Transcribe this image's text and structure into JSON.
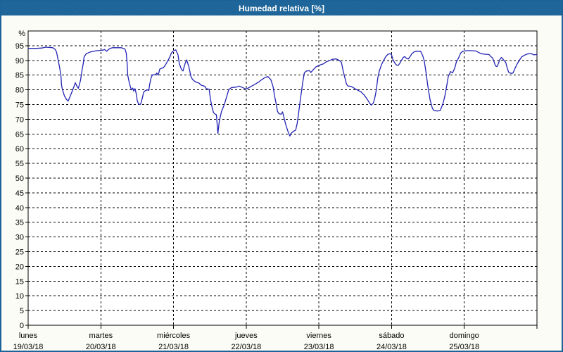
{
  "window": {
    "title": "Humedad relativa [%]"
  },
  "colors": {
    "titlebar_bg": "#1b6398",
    "frame_border": "#1b6398",
    "frame_bg": "#fbfcf5",
    "plot_bg": "#ffffff",
    "grid": "#000000",
    "series_line": "#2323b4"
  },
  "chart_data": {
    "type": "line",
    "title": "Humedad relativa [%]",
    "xlabel": "",
    "ylabel": "%",
    "ylim": [
      0,
      100
    ],
    "y_ticks": [
      0,
      5,
      10,
      15,
      20,
      25,
      30,
      35,
      40,
      45,
      50,
      55,
      60,
      65,
      70,
      75,
      80,
      85,
      90,
      95
    ],
    "grid": "dashed",
    "legend": "none",
    "x_days": [
      {
        "name": "lunes",
        "date": "19/03/18"
      },
      {
        "name": "martes",
        "date": "20/03/18"
      },
      {
        "name": "miércoles",
        "date": "21/03/18"
      },
      {
        "name": "jueves",
        "date": "22/03/18"
      },
      {
        "name": "viernes",
        "date": "23/03/18"
      },
      {
        "name": "sábado",
        "date": "24/03/18"
      },
      {
        "name": "domingo",
        "date": "25/03/18"
      }
    ],
    "x_unit": "days_from_monday_00h",
    "series": [
      {
        "name": "Humedad relativa",
        "color": "#2323b4",
        "points": [
          [
            0.0,
            94.1
          ],
          [
            0.12,
            94.1
          ],
          [
            0.19,
            94.2
          ],
          [
            0.24,
            94.5
          ],
          [
            0.29,
            94.4
          ],
          [
            0.34,
            94.3
          ],
          [
            0.37,
            93.8
          ],
          [
            0.39,
            92.9
          ],
          [
            0.41,
            90.5
          ],
          [
            0.43,
            88.0
          ],
          [
            0.45,
            85.0
          ],
          [
            0.46,
            81.5
          ],
          [
            0.47,
            80.3
          ],
          [
            0.5,
            77.9
          ],
          [
            0.53,
            76.7
          ],
          [
            0.55,
            76.2
          ],
          [
            0.58,
            77.9
          ],
          [
            0.62,
            80.4
          ],
          [
            0.65,
            82.4
          ],
          [
            0.67,
            81.3
          ],
          [
            0.69,
            80.5
          ],
          [
            0.72,
            83.2
          ],
          [
            0.74,
            86.4
          ],
          [
            0.76,
            89.2
          ],
          [
            0.77,
            91.2
          ],
          [
            0.8,
            92.3
          ],
          [
            0.86,
            92.9
          ],
          [
            0.94,
            93.3
          ],
          [
            1.0,
            93.4
          ],
          [
            1.03,
            93.5
          ],
          [
            1.05,
            93.7
          ],
          [
            1.08,
            93.1
          ],
          [
            1.12,
            94.0
          ],
          [
            1.16,
            94.3
          ],
          [
            1.28,
            94.3
          ],
          [
            1.33,
            93.9
          ],
          [
            1.35,
            92.5
          ],
          [
            1.36,
            89.5
          ],
          [
            1.37,
            85.0
          ],
          [
            1.39,
            82.5
          ],
          [
            1.41,
            80.8
          ],
          [
            1.42,
            80.0
          ],
          [
            1.44,
            80.6
          ],
          [
            1.45,
            79.6
          ],
          [
            1.47,
            80.4
          ],
          [
            1.49,
            78.4
          ],
          [
            1.5,
            76.4
          ],
          [
            1.52,
            75.1
          ],
          [
            1.54,
            75.0
          ],
          [
            1.55,
            75.3
          ],
          [
            1.57,
            77.2
          ],
          [
            1.59,
            79.2
          ],
          [
            1.61,
            79.7
          ],
          [
            1.64,
            80.0
          ],
          [
            1.66,
            79.8
          ],
          [
            1.67,
            81.6
          ],
          [
            1.69,
            84.0
          ],
          [
            1.71,
            85.1
          ],
          [
            1.75,
            85.1
          ],
          [
            1.77,
            85.7
          ],
          [
            1.79,
            85.0
          ],
          [
            1.81,
            87.0
          ],
          [
            1.84,
            87.4
          ],
          [
            1.86,
            87.5
          ],
          [
            1.89,
            88.5
          ],
          [
            1.92,
            89.8
          ],
          [
            1.95,
            91.2
          ],
          [
            1.97,
            92.5
          ],
          [
            2.0,
            93.3
          ],
          [
            2.03,
            93.6
          ],
          [
            2.06,
            92.0
          ],
          [
            2.08,
            88.9
          ],
          [
            2.11,
            86.9
          ],
          [
            2.13,
            86.4
          ],
          [
            2.16,
            89.0
          ],
          [
            2.18,
            90.2
          ],
          [
            2.21,
            87.9
          ],
          [
            2.24,
            84.5
          ],
          [
            2.26,
            83.6
          ],
          [
            2.3,
            82.7
          ],
          [
            2.35,
            82.3
          ],
          [
            2.38,
            81.6
          ],
          [
            2.43,
            81.2
          ],
          [
            2.45,
            80.4
          ],
          [
            2.49,
            80.2
          ],
          [
            2.51,
            76.6
          ],
          [
            2.53,
            74.1
          ],
          [
            2.55,
            72.3
          ],
          [
            2.57,
            71.8
          ],
          [
            2.59,
            71.5
          ],
          [
            2.61,
            65.2
          ],
          [
            2.63,
            69.3
          ],
          [
            2.66,
            72.6
          ],
          [
            2.7,
            75.1
          ],
          [
            2.73,
            77.6
          ],
          [
            2.76,
            80.1
          ],
          [
            2.8,
            80.8
          ],
          [
            2.86,
            80.9
          ],
          [
            2.9,
            81.3
          ],
          [
            2.95,
            80.8
          ],
          [
            2.99,
            80.3
          ],
          [
            3.02,
            80.5
          ],
          [
            3.07,
            81.2
          ],
          [
            3.12,
            81.9
          ],
          [
            3.17,
            82.6
          ],
          [
            3.21,
            83.4
          ],
          [
            3.26,
            84.2
          ],
          [
            3.3,
            84.5
          ],
          [
            3.34,
            83.4
          ],
          [
            3.37,
            81.0
          ],
          [
            3.39,
            78.0
          ],
          [
            3.41,
            75.5
          ],
          [
            3.43,
            72.7
          ],
          [
            3.45,
            71.9
          ],
          [
            3.48,
            71.7
          ],
          [
            3.49,
            72.1
          ],
          [
            3.5,
            72.5
          ],
          [
            3.52,
            70.5
          ],
          [
            3.54,
            68.6
          ],
          [
            3.57,
            66.2
          ],
          [
            3.6,
            64.3
          ],
          [
            3.62,
            65.3
          ],
          [
            3.65,
            65.9
          ],
          [
            3.68,
            66.3
          ],
          [
            3.7,
            68.5
          ],
          [
            3.72,
            71.9
          ],
          [
            3.75,
            77.6
          ],
          [
            3.78,
            82.9
          ],
          [
            3.8,
            85.8
          ],
          [
            3.83,
            86.4
          ],
          [
            3.87,
            86.5
          ],
          [
            3.89,
            85.9
          ],
          [
            3.92,
            86.8
          ],
          [
            3.96,
            87.8
          ],
          [
            4.01,
            88.4
          ],
          [
            4.06,
            88.8
          ],
          [
            4.1,
            89.5
          ],
          [
            4.15,
            90.0
          ],
          [
            4.19,
            90.4
          ],
          [
            4.24,
            90.5
          ],
          [
            4.28,
            90.0
          ],
          [
            4.31,
            89.3
          ],
          [
            4.33,
            86.9
          ],
          [
            4.35,
            84.8
          ],
          [
            4.38,
            81.9
          ],
          [
            4.4,
            81.3
          ],
          [
            4.44,
            81.2
          ],
          [
            4.47,
            80.8
          ],
          [
            4.5,
            80.3
          ],
          [
            4.54,
            79.8
          ],
          [
            4.58,
            79.3
          ],
          [
            4.62,
            78.3
          ],
          [
            4.66,
            77.0
          ],
          [
            4.7,
            75.4
          ],
          [
            4.72,
            74.8
          ],
          [
            4.75,
            75.5
          ],
          [
            4.77,
            77.4
          ],
          [
            4.79,
            79.9
          ],
          [
            4.81,
            84.0
          ],
          [
            4.83,
            86.3
          ],
          [
            4.86,
            88.5
          ],
          [
            4.89,
            90.0
          ],
          [
            4.92,
            91.3
          ],
          [
            4.95,
            92.1
          ],
          [
            4.98,
            92.3
          ],
          [
            5.0,
            91.9
          ],
          [
            5.02,
            90.2
          ],
          [
            5.05,
            88.9
          ],
          [
            5.07,
            88.4
          ],
          [
            5.09,
            88.3
          ],
          [
            5.11,
            88.9
          ],
          [
            5.13,
            89.8
          ],
          [
            5.16,
            91.0
          ],
          [
            5.18,
            91.3
          ],
          [
            5.21,
            90.6
          ],
          [
            5.23,
            90.5
          ],
          [
            5.26,
            91.5
          ],
          [
            5.28,
            92.3
          ],
          [
            5.31,
            92.9
          ],
          [
            5.34,
            93.1
          ],
          [
            5.4,
            93.1
          ],
          [
            5.43,
            91.5
          ],
          [
            5.45,
            89.8
          ],
          [
            5.47,
            86.5
          ],
          [
            5.5,
            81.0
          ],
          [
            5.53,
            76.5
          ],
          [
            5.56,
            73.8
          ],
          [
            5.58,
            73.0
          ],
          [
            5.63,
            72.8
          ],
          [
            5.67,
            73.0
          ],
          [
            5.7,
            74.8
          ],
          [
            5.73,
            77.5
          ],
          [
            5.76,
            81.5
          ],
          [
            5.78,
            84.6
          ],
          [
            5.8,
            85.6
          ],
          [
            5.81,
            86.2
          ],
          [
            5.84,
            85.8
          ],
          [
            5.87,
            87.5
          ],
          [
            5.89,
            89.4
          ],
          [
            5.92,
            90.8
          ],
          [
            5.95,
            92.5
          ],
          [
            5.98,
            93.1
          ],
          [
            6.02,
            93.3
          ],
          [
            6.1,
            93.3
          ],
          [
            6.16,
            93.2
          ],
          [
            6.19,
            92.8
          ],
          [
            6.23,
            92.3
          ],
          [
            6.28,
            92.1
          ],
          [
            6.34,
            92.0
          ],
          [
            6.37,
            91.2
          ],
          [
            6.39,
            90.8
          ],
          [
            6.41,
            89.5
          ],
          [
            6.43,
            88.1
          ],
          [
            6.45,
            87.9
          ],
          [
            6.47,
            89.0
          ],
          [
            6.49,
            90.3
          ],
          [
            6.51,
            91.0
          ],
          [
            6.54,
            90.2
          ],
          [
            6.57,
            89.3
          ],
          [
            6.59,
            87.5
          ],
          [
            6.61,
            86.0
          ],
          [
            6.64,
            85.6
          ],
          [
            6.67,
            85.7
          ],
          [
            6.7,
            87.4
          ],
          [
            6.73,
            88.9
          ],
          [
            6.76,
            90.1
          ],
          [
            6.79,
            91.2
          ],
          [
            6.83,
            91.8
          ],
          [
            6.87,
            92.2
          ],
          [
            6.92,
            92.3
          ],
          [
            6.96,
            91.9
          ],
          [
            7.0,
            92.0
          ]
        ]
      }
    ]
  }
}
